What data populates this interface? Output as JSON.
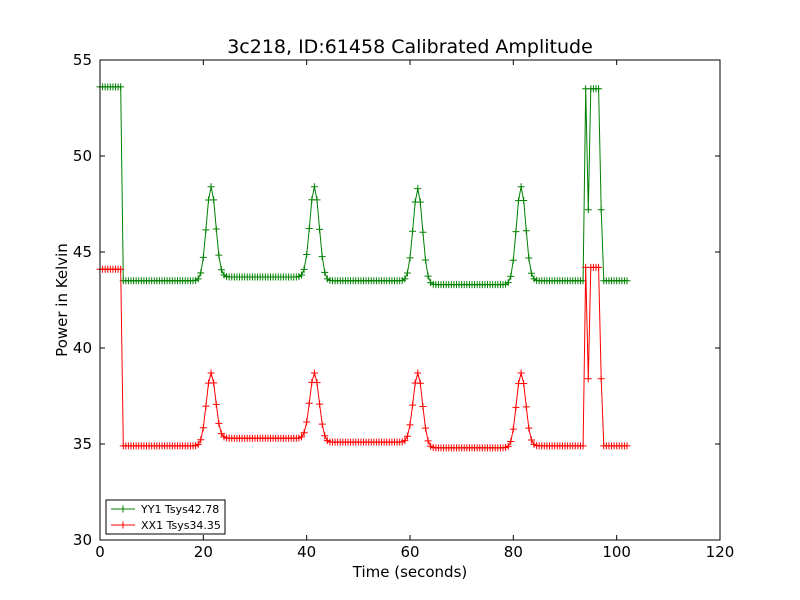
{
  "chart_data": {
    "type": "line",
    "title": "3c218, ID:61458 Calibrated Amplitude",
    "xlabel": "Time (seconds)",
    "ylabel": "Power in Kelvin",
    "xlim": [
      0,
      120
    ],
    "ylim": [
      30,
      55
    ],
    "xticks": [
      "0",
      "20",
      "40",
      "60",
      "80",
      "100",
      "120"
    ],
    "yticks": [
      "30",
      "35",
      "40",
      "45",
      "50",
      "55"
    ],
    "grid": false,
    "legend_position": "lower-left",
    "marker": "+",
    "sample_step_seconds": 0.5,
    "series": [
      {
        "name": "YY1 Tsys42.78",
        "color": "#008000",
        "baseline_segments": [
          {
            "x": [
              0,
              4
            ],
            "y": [
              53.6,
              53.6
            ]
          },
          {
            "x": [
              4,
              20
            ],
            "y": [
              43.5,
              43.5
            ]
          },
          {
            "x": [
              24,
              40
            ],
            "y": [
              43.7,
              43.7
            ]
          },
          {
            "x": [
              44,
              60
            ],
            "y": [
              43.5,
              43.5
            ]
          },
          {
            "x": [
              64,
              80
            ],
            "y": [
              43.3,
              43.3
            ]
          },
          {
            "x": [
              84,
              93.5
            ],
            "y": [
              43.5,
              43.5
            ]
          },
          {
            "x": [
              93.5,
              97
            ],
            "y": [
              53.5,
              53.5
            ]
          },
          {
            "x": [
              97,
              102
            ],
            "y": [
              43.5,
              43.5
            ]
          }
        ],
        "peaks": [
          {
            "x": 21.5,
            "y": 48.4
          },
          {
            "x": 41.5,
            "y": 48.4
          },
          {
            "x": 61.5,
            "y": 48.3
          },
          {
            "x": 81.5,
            "y": 48.4
          }
        ],
        "spikes": [
          {
            "x": 94.5,
            "y": 47.2
          },
          {
            "x": 96.8,
            "y": 47.2
          }
        ]
      },
      {
        "name": "XX1 Tsys34.35",
        "color": "#ff0000",
        "baseline_segments": [
          {
            "x": [
              0,
              4
            ],
            "y": [
              44.1,
              44.1
            ]
          },
          {
            "x": [
              4,
              20
            ],
            "y": [
              34.9,
              34.9
            ]
          },
          {
            "x": [
              24,
              40
            ],
            "y": [
              35.3,
              35.3
            ]
          },
          {
            "x": [
              44,
              60
            ],
            "y": [
              35.1,
              35.1
            ]
          },
          {
            "x": [
              64,
              80
            ],
            "y": [
              34.8,
              34.8
            ]
          },
          {
            "x": [
              84,
              93.5
            ],
            "y": [
              34.9,
              34.9
            ]
          },
          {
            "x": [
              93.5,
              97
            ],
            "y": [
              44.2,
              44.2
            ]
          },
          {
            "x": [
              97,
              102
            ],
            "y": [
              34.9,
              34.9
            ]
          }
        ],
        "peaks": [
          {
            "x": 21.5,
            "y": 38.7
          },
          {
            "x": 41.5,
            "y": 38.7
          },
          {
            "x": 61.5,
            "y": 38.7
          },
          {
            "x": 81.5,
            "y": 38.7
          }
        ],
        "spikes": [
          {
            "x": 94.5,
            "y": 38.4
          },
          {
            "x": 96.8,
            "y": 38.4
          }
        ]
      }
    ]
  }
}
